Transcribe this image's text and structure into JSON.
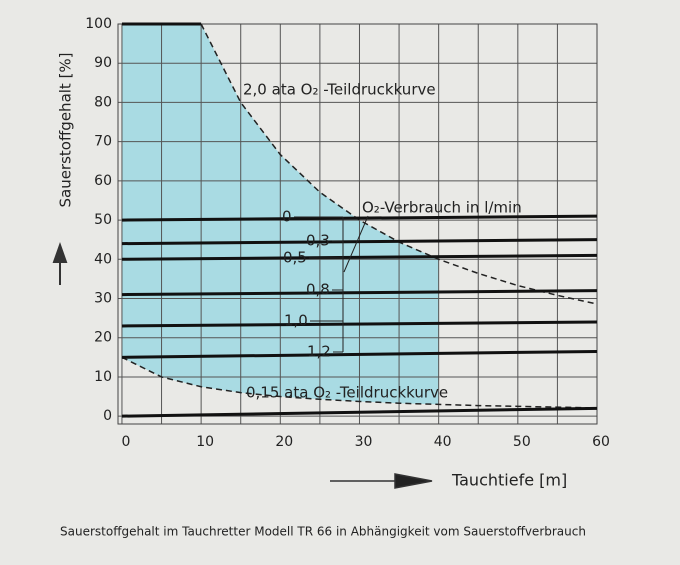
{
  "chart_data": {
    "type": "line",
    "x_label": "Tauchtiefe [m]",
    "y_label": "Sauerstoffgehalt [%]",
    "caption": "Sauerstoffgehalt im Tauchretter Modell TR 66 in Abhängigkeit vom Sauerstoffverbrauch",
    "legend_title": "O₂-Verbrauch in l/min",
    "xlim": [
      -0.5,
      60
    ],
    "ylim": [
      -2,
      100
    ],
    "xticks": [
      0,
      10,
      20,
      30,
      40,
      50,
      60
    ],
    "x_minor_grid": [
      5,
      15,
      25,
      35,
      45,
      55
    ],
    "yticks": [
      0,
      10,
      20,
      30,
      40,
      50,
      60,
      70,
      80,
      90,
      100
    ],
    "grid": true,
    "shade_xmax": 40,
    "shade_color": "#a9dbe3",
    "curves": [
      {
        "name": "2,0 ata O₂ -Teildruckkurve",
        "color": "#222222",
        "x": [
          10,
          15,
          20,
          25,
          30,
          35,
          40,
          45,
          50,
          55,
          60
        ],
        "values": [
          100,
          80,
          66.7,
          57.1,
          50,
          44.4,
          40,
          36.4,
          33.3,
          30.8,
          28.6
        ]
      },
      {
        "name": "0,15 ata O₂ -Teildruckkurve",
        "color": "#222222",
        "x": [
          0,
          5,
          10,
          15,
          20,
          25,
          30,
          35,
          40,
          45,
          50,
          55,
          60
        ],
        "values": [
          15,
          10,
          7.5,
          6,
          5,
          4.3,
          3.75,
          3.3,
          3,
          2.7,
          2.5,
          2.3,
          2.1
        ]
      }
    ],
    "series": [
      {
        "name": "0",
        "color": "#111111",
        "x": [
          0,
          60
        ],
        "values": [
          50,
          51
        ]
      },
      {
        "name": "0,3",
        "color": "#111111",
        "x": [
          0,
          60
        ],
        "values": [
          44,
          45
        ]
      },
      {
        "name": "0,5",
        "color": "#111111",
        "x": [
          0,
          60
        ],
        "values": [
          40,
          41
        ]
      },
      {
        "name": "0,8",
        "color": "#111111",
        "x": [
          0,
          60
        ],
        "values": [
          31,
          32
        ]
      },
      {
        "name": "1,0",
        "color": "#111111",
        "x": [
          0,
          60
        ],
        "values": [
          23,
          24
        ]
      },
      {
        "name": "1,2",
        "color": "#111111",
        "x": [
          0,
          60
        ],
        "values": [
          15,
          16.5
        ]
      },
      {
        "color": "#111111",
        "x": [
          0,
          60
        ],
        "values": [
          0,
          2
        ]
      }
    ]
  }
}
